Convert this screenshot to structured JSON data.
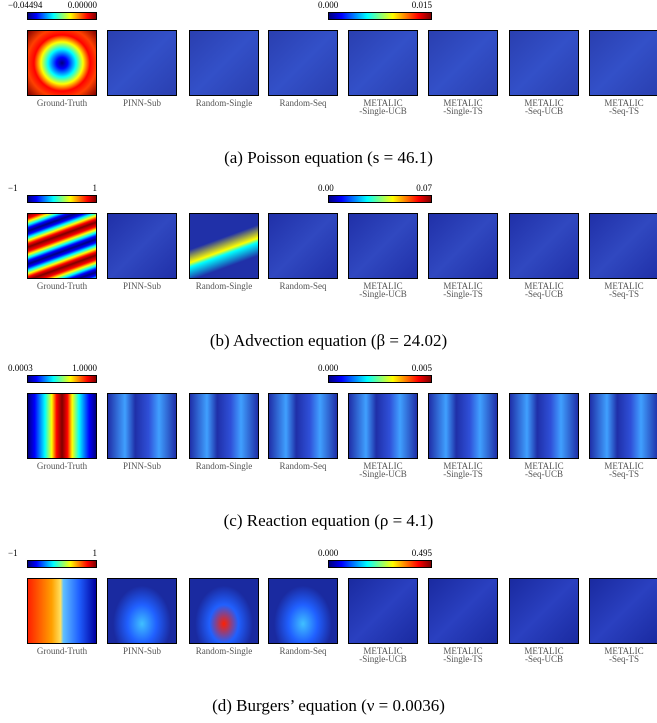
{
  "panels": [
    {
      "left_colorbar": {
        "min_label": "−0.04494",
        "max_label": "0.00000"
      },
      "right_colorbar": {
        "min_label": "0.000",
        "max_label": "0.015"
      },
      "subplots": [
        [
          "Ground-Truth"
        ],
        [
          "PINN-Sub"
        ],
        [
          "Random-Single"
        ],
        [
          "Random-Seq"
        ],
        [
          "METALIC",
          "-Single-UCB"
        ],
        [
          "METALIC",
          "-Single-TS"
        ],
        [
          "METALIC",
          "-Seq-UCB"
        ],
        [
          "METALIC",
          "-Seq-TS"
        ]
      ],
      "caption": "(a) Poisson equation (s = 46.1)"
    },
    {
      "left_colorbar": {
        "min_label": "−1",
        "max_label": "1"
      },
      "right_colorbar": {
        "min_label": "0.00",
        "max_label": "0.07"
      },
      "subplots": [
        [
          "Ground-Truth"
        ],
        [
          "PINN-Sub"
        ],
        [
          "Random-Single"
        ],
        [
          "Random-Seq"
        ],
        [
          "METALIC",
          "-Single-UCB"
        ],
        [
          "METALIC",
          "-Single-TS"
        ],
        [
          "METALIC",
          "-Seq-UCB"
        ],
        [
          "METALIC",
          "-Seq-TS"
        ]
      ],
      "caption": "(b) Advection equation (β = 24.02)"
    },
    {
      "left_colorbar": {
        "min_label": "0.0003",
        "max_label": "1.0000"
      },
      "right_colorbar": {
        "min_label": "0.000",
        "max_label": "0.005"
      },
      "subplots": [
        [
          "Ground-Truth"
        ],
        [
          "PINN-Sub"
        ],
        [
          "Random-Single"
        ],
        [
          "Random-Seq"
        ],
        [
          "METALIC",
          "-Single-UCB"
        ],
        [
          "METALIC",
          "-Single-TS"
        ],
        [
          "METALIC",
          "-Seq-UCB"
        ],
        [
          "METALIC",
          "-Seq-TS"
        ]
      ],
      "caption": "(c) Reaction equation (ρ = 4.1)"
    },
    {
      "left_colorbar": {
        "min_label": "−1",
        "max_label": "1"
      },
      "right_colorbar": {
        "min_label": "0.000",
        "max_label": "0.495"
      },
      "subplots": [
        [
          "Ground-Truth"
        ],
        [
          "PINN-Sub"
        ],
        [
          "Random-Single"
        ],
        [
          "Random-Seq"
        ],
        [
          "METALIC",
          "-Single-UCB"
        ],
        [
          "METALIC",
          "-Single-TS"
        ],
        [
          "METALIC",
          "-Seq-UCB"
        ],
        [
          "METALIC",
          "-Seq-TS"
        ]
      ],
      "caption": "(d) Burgers’ equation (ν = 0.0036)"
    }
  ]
}
